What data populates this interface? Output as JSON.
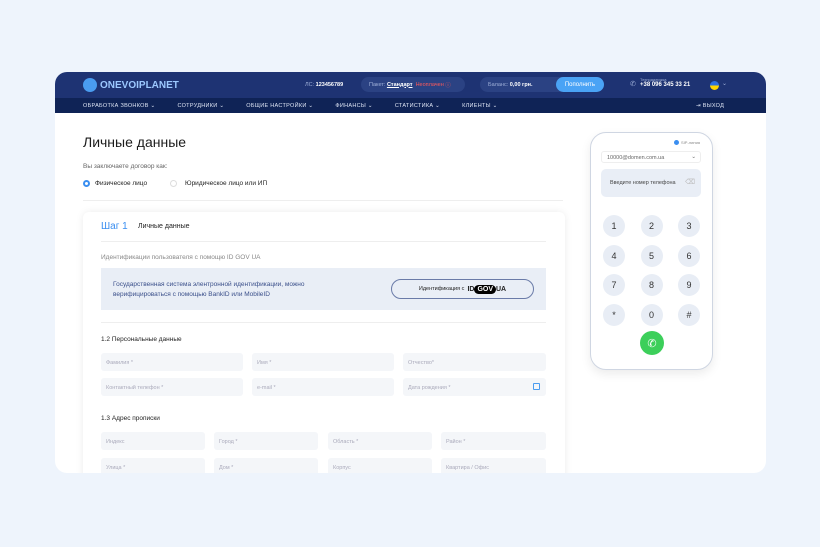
{
  "header": {
    "logo": "ONEVOIPLANET",
    "account_label": "ЛС:",
    "account_number": "123456789",
    "package_label": "Пакет:",
    "package_name": "Стандарт",
    "package_status": "Неоплачен",
    "balance_label": "Баланс:",
    "balance_value": "0,00 грн.",
    "topup_button": "Пополнить",
    "support_label": "Техподдержка",
    "support_phone": "+38 096 345 33 21",
    "language_flag": "ua-flag"
  },
  "nav": {
    "items": [
      "ОБРАБОТКА ЗВОНКОВ",
      "СОТРУДНИКИ",
      "ОБЩИЕ НАСТРОЙКИ",
      "ФИНАНСЫ",
      "СТАТИСТИКА",
      "КЛИЕНТЫ"
    ],
    "logout": "ВЫХОД"
  },
  "page": {
    "title": "Личные данные",
    "contract_question": "Вы заключаете договор как:",
    "options": [
      "Физическое лицо",
      "Юридическое лицо или ИП"
    ],
    "selected": 0
  },
  "step": {
    "label": "Шаг 1",
    "title": "Личные данные",
    "id_heading": "Идентификации пользователя с помощю ID GOV UA",
    "id_text1": "Государственная система элентронной идентификации, можно",
    "id_text2": "верифицироваться с помощью BankID или MobileID",
    "id_button": "Идентификация с",
    "id_logo": "ID GOV UA",
    "personal_heading": "1.2  Персональные данные",
    "personal_fields": [
      "Фамилия *",
      "Имя *",
      "Отчество*",
      "Контактный телефон *",
      "e-mail *",
      "Дата рождения *"
    ],
    "address_heading": "1.3  Адрес прописки",
    "address_fields": [
      "Индекс",
      "Город *",
      "Область *",
      "Район *",
      "Улица *",
      "Дом  *",
      "Корпус",
      "Квартира / Офис"
    ]
  },
  "phone": {
    "status": "SIP-линия",
    "account": "10000@domen.com.ua",
    "placeholder": "Введите номер телефона",
    "keys": [
      "1",
      "2",
      "3",
      "4",
      "5",
      "6",
      "7",
      "8",
      "9",
      "*",
      "0",
      "#"
    ],
    "call_color": "#3ccf5a"
  }
}
